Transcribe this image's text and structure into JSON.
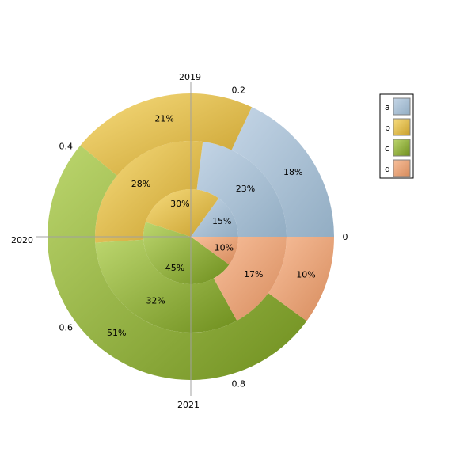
{
  "chart_data": {
    "type": "pie",
    "subtype": "concentric-rings",
    "start_angle_at": "east",
    "direction": "counter-clockwise",
    "categories": [
      "a",
      "b",
      "c",
      "d"
    ],
    "colors": {
      "a": [
        "#c4d5e6",
        "#92adc3"
      ],
      "b": [
        "#f7dc7e",
        "#c89f2c"
      ],
      "c": [
        "#bcd66e",
        "#6f8f1e"
      ],
      "d": [
        "#f8bf9b",
        "#d68b5c"
      ]
    },
    "series": [
      {
        "values": [
          0.15,
          0.3,
          0.45,
          0.1
        ],
        "labels": [
          "15%",
          "30%",
          "45%",
          "10%"
        ]
      },
      {
        "values": [
          0.23,
          0.28,
          0.32,
          0.17
        ],
        "labels": [
          "23%",
          "28%",
          "32%",
          "17%"
        ]
      },
      {
        "values": [
          0.18,
          0.21,
          0.51,
          0.1
        ],
        "labels": [
          "18%",
          "21%",
          "51%",
          "10%"
        ]
      }
    ],
    "angular_axis": {
      "tick_labels": [
        "0",
        "0.2",
        "0.4",
        "0.6",
        "0.8"
      ],
      "tick_values": [
        0,
        0.2,
        0.4,
        0.6,
        0.8
      ]
    },
    "radial_axis": {
      "labels": [
        "2019",
        "2020",
        "2021"
      ],
      "directions": [
        "top",
        "left",
        "bottom"
      ]
    },
    "legend": {
      "placement": "top-right",
      "entries": [
        "a",
        "b",
        "c",
        "d"
      ]
    }
  }
}
